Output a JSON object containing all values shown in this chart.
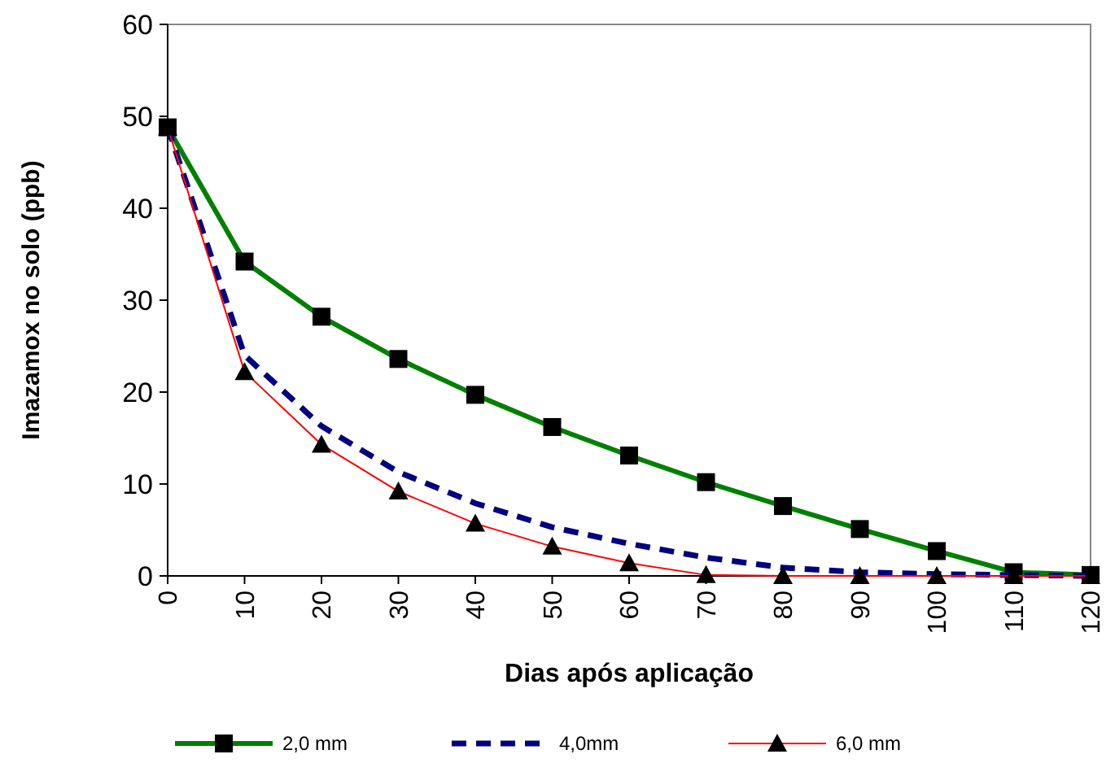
{
  "chart_data": {
    "type": "line",
    "xlabel": "Dias após aplicação",
    "ylabel": "Imazamox no solo (ppb)",
    "x": [
      0,
      10,
      20,
      30,
      40,
      50,
      60,
      70,
      80,
      90,
      100,
      110,
      120
    ],
    "xlim": [
      0,
      120
    ],
    "xticks": [
      0,
      10,
      20,
      30,
      40,
      50,
      60,
      70,
      80,
      90,
      100,
      110,
      120
    ],
    "ylim": [
      0,
      60
    ],
    "yticks": [
      0,
      10,
      20,
      30,
      40,
      50,
      60
    ],
    "grid": false,
    "legend": "bottom",
    "series": [
      {
        "name": "2,0 mm",
        "color": "#008000",
        "marker": "square",
        "line_style": "solid",
        "values": [
          48.8,
          34.2,
          28.2,
          23.6,
          19.7,
          16.2,
          13.1,
          10.2,
          7.6,
          5.1,
          2.7,
          0.4,
          0.1
        ]
      },
      {
        "name": "4,0mm",
        "color": "#000080",
        "marker": "none",
        "line_style": "dashed",
        "values": [
          48.8,
          24,
          16.3,
          11.3,
          7.9,
          5.3,
          3.5,
          2,
          0.9,
          0.4,
          0.2,
          0.1,
          0
        ]
      },
      {
        "name": "6,0 mm",
        "color": "#ff0000",
        "marker": "triangle",
        "line_style": "solid",
        "values": [
          48.8,
          22.2,
          14.3,
          9.2,
          5.7,
          3.2,
          1.4,
          0.1,
          0,
          0,
          0,
          0,
          0
        ]
      }
    ]
  }
}
